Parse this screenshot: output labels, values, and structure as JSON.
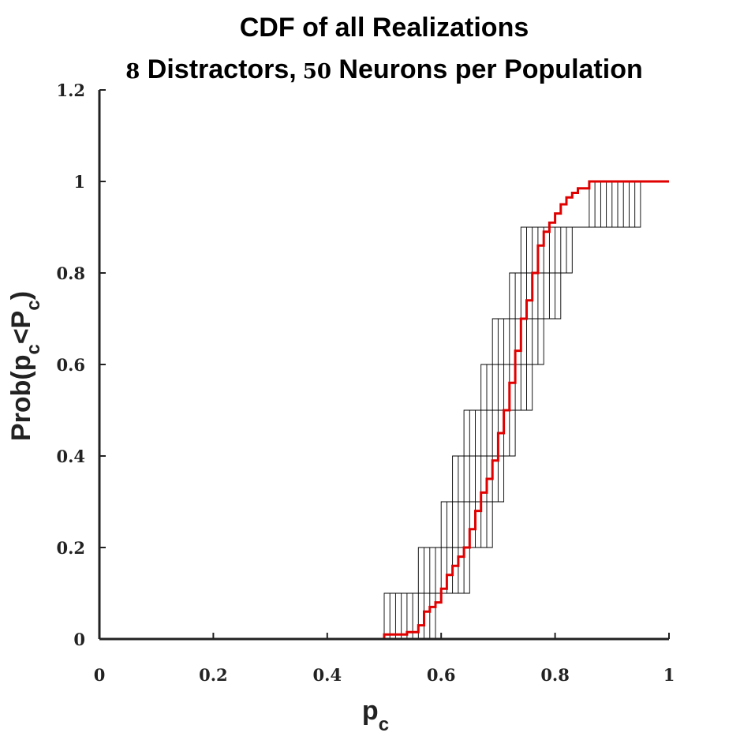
{
  "chart_data": {
    "type": "line",
    "title": "CDF of all Realizations",
    "subtitle_parts": {
      "n_distractors": "8",
      "distractors_text": " Distractors,",
      "n_neurons": "50",
      "neurons_text": " Neurons per Population"
    },
    "xlabel": {
      "base": "p",
      "sub": "c"
    },
    "ylabel": {
      "prefix": "Prob(p",
      "sub1": "c",
      "mid": "<P",
      "sub2": "c",
      "suffix": ")"
    },
    "xlim": [
      0,
      1
    ],
    "ylim": [
      0,
      1.2
    ],
    "xticks": [
      0,
      0.2,
      0.4,
      0.6,
      0.8,
      1
    ],
    "xtick_labels": [
      "0",
      "0.2",
      "0.4",
      "0.6",
      "0.8",
      "1"
    ],
    "yticks": [
      0,
      0.2,
      0.4,
      0.6,
      0.8,
      1,
      1.2
    ],
    "ytick_labels": [
      "0",
      "0.2",
      "0.4",
      "0.6",
      "0.8",
      "1",
      "1.2"
    ],
    "grid": false,
    "colors": {
      "mean": "#e00000",
      "realizations": "#000000",
      "axis": "#222222"
    },
    "realizations": [
      [
        0.5,
        0.56,
        0.6,
        0.62,
        0.64,
        0.67,
        0.69,
        0.72,
        0.74,
        0.86
      ],
      [
        0.51,
        0.57,
        0.61,
        0.63,
        0.65,
        0.68,
        0.7,
        0.73,
        0.75,
        0.87
      ],
      [
        0.52,
        0.58,
        0.62,
        0.64,
        0.66,
        0.69,
        0.71,
        0.74,
        0.76,
        0.88
      ],
      [
        0.53,
        0.59,
        0.63,
        0.65,
        0.67,
        0.7,
        0.72,
        0.75,
        0.77,
        0.89
      ],
      [
        0.54,
        0.6,
        0.64,
        0.66,
        0.68,
        0.71,
        0.73,
        0.76,
        0.78,
        0.9
      ],
      [
        0.55,
        0.61,
        0.65,
        0.67,
        0.69,
        0.72,
        0.74,
        0.77,
        0.79,
        0.91
      ],
      [
        0.56,
        0.62,
        0.66,
        0.68,
        0.7,
        0.73,
        0.75,
        0.78,
        0.8,
        0.92
      ],
      [
        0.57,
        0.63,
        0.67,
        0.69,
        0.71,
        0.74,
        0.76,
        0.79,
        0.81,
        0.93
      ],
      [
        0.58,
        0.64,
        0.68,
        0.7,
        0.72,
        0.75,
        0.77,
        0.8,
        0.82,
        0.94
      ],
      [
        0.59,
        0.65,
        0.69,
        0.71,
        0.73,
        0.76,
        0.78,
        0.81,
        0.83,
        0.95
      ]
    ],
    "realizations_ymax": 0.8,
    "mean_cdf": {
      "x": [
        0,
        0.5,
        0.54,
        0.56,
        0.57,
        0.58,
        0.59,
        0.6,
        0.61,
        0.62,
        0.63,
        0.64,
        0.65,
        0.66,
        0.67,
        0.68,
        0.69,
        0.7,
        0.71,
        0.72,
        0.73,
        0.74,
        0.75,
        0.76,
        0.77,
        0.78,
        0.79,
        0.8,
        0.81,
        0.82,
        0.83,
        0.84,
        0.86,
        1.0
      ],
      "y": [
        0,
        0.01,
        0.015,
        0.03,
        0.06,
        0.07,
        0.08,
        0.11,
        0.14,
        0.16,
        0.18,
        0.2,
        0.24,
        0.28,
        0.32,
        0.35,
        0.39,
        0.45,
        0.5,
        0.56,
        0.63,
        0.7,
        0.74,
        0.8,
        0.86,
        0.89,
        0.91,
        0.93,
        0.95,
        0.965,
        0.975,
        0.985,
        1.0,
        1.0
      ]
    }
  }
}
